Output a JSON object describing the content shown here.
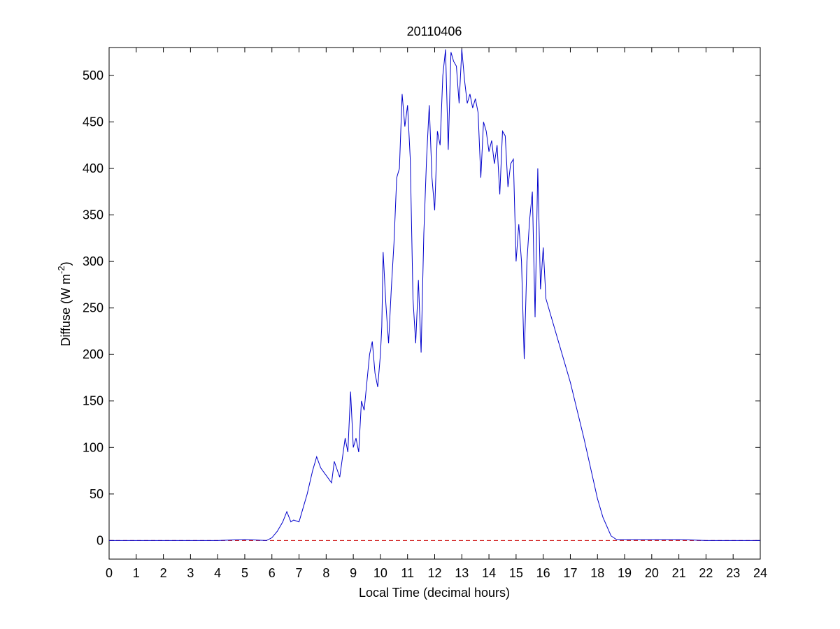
{
  "chart_data": {
    "type": "line",
    "title": "20110406",
    "xlabel": "Local Time (decimal hours)",
    "ylabel": [
      "Diffuse (W m",
      "-2",
      ")"
    ],
    "xlim": [
      0,
      24
    ],
    "xticks": [
      0,
      1,
      2,
      3,
      4,
      5,
      6,
      7,
      8,
      9,
      10,
      11,
      12,
      13,
      14,
      15,
      16,
      17,
      18,
      19,
      20,
      21,
      22,
      23,
      24
    ],
    "ylim": [
      -20,
      530
    ],
    "yticks": [
      0,
      50,
      100,
      150,
      200,
      250,
      300,
      350,
      400,
      450,
      500
    ],
    "reference_line": {
      "value": 0,
      "color": "#cc0000"
    },
    "series": [
      {
        "color": "#0000cc",
        "x": [
          0,
          4,
          5,
          5.8,
          6.0,
          6.2,
          6.4,
          6.55,
          6.7,
          6.8,
          7.0,
          7.1,
          7.3,
          7.5,
          7.65,
          7.8,
          8.0,
          8.2,
          8.3,
          8.5,
          8.7,
          8.8,
          8.9,
          9.0,
          9.1,
          9.2,
          9.3,
          9.4,
          9.5,
          9.6,
          9.7,
          9.8,
          9.9,
          10.0,
          10.05,
          10.1,
          10.2,
          10.3,
          10.4,
          10.5,
          10.6,
          10.7,
          10.8,
          10.9,
          11.0,
          11.1,
          11.2,
          11.3,
          11.4,
          11.5,
          11.6,
          11.7,
          11.8,
          11.9,
          12.0,
          12.1,
          12.2,
          12.3,
          12.4,
          12.5,
          12.6,
          12.7,
          12.8,
          12.9,
          13.0,
          13.1,
          13.2,
          13.3,
          13.4,
          13.5,
          13.6,
          13.7,
          13.8,
          13.9,
          14.0,
          14.1,
          14.2,
          14.3,
          14.4,
          14.5,
          14.6,
          14.7,
          14.8,
          14.9,
          15.0,
          15.1,
          15.2,
          15.3,
          15.4,
          15.5,
          15.6,
          15.7,
          15.8,
          15.9,
          16.0,
          16.1,
          16.3,
          16.5,
          17,
          17.5,
          18,
          18.2,
          18.5,
          18.7,
          19,
          20,
          21,
          22,
          24
        ],
        "values": [
          0,
          0,
          1,
          0,
          3,
          10,
          20,
          31,
          20,
          22,
          20,
          30,
          50,
          75,
          90,
          78,
          70,
          62,
          85,
          68,
          110,
          95,
          160,
          100,
          110,
          95,
          150,
          140,
          170,
          200,
          214,
          180,
          165,
          200,
          230,
          310,
          255,
          212,
          270,
          320,
          390,
          400,
          480,
          445,
          468,
          410,
          260,
          212,
          280,
          202,
          330,
          410,
          468,
          390,
          355,
          440,
          425,
          500,
          528,
          420,
          525,
          515,
          510,
          470,
          528,
          495,
          470,
          480,
          465,
          475,
          460,
          390,
          450,
          440,
          418,
          430,
          405,
          425,
          372,
          440,
          435,
          380,
          405,
          410,
          300,
          340,
          300,
          195,
          300,
          345,
          375,
          240,
          400,
          270,
          315,
          260,
          240,
          220,
          170,
          110,
          45,
          25,
          5,
          1,
          1,
          1,
          1,
          0,
          0
        ]
      }
    ]
  }
}
